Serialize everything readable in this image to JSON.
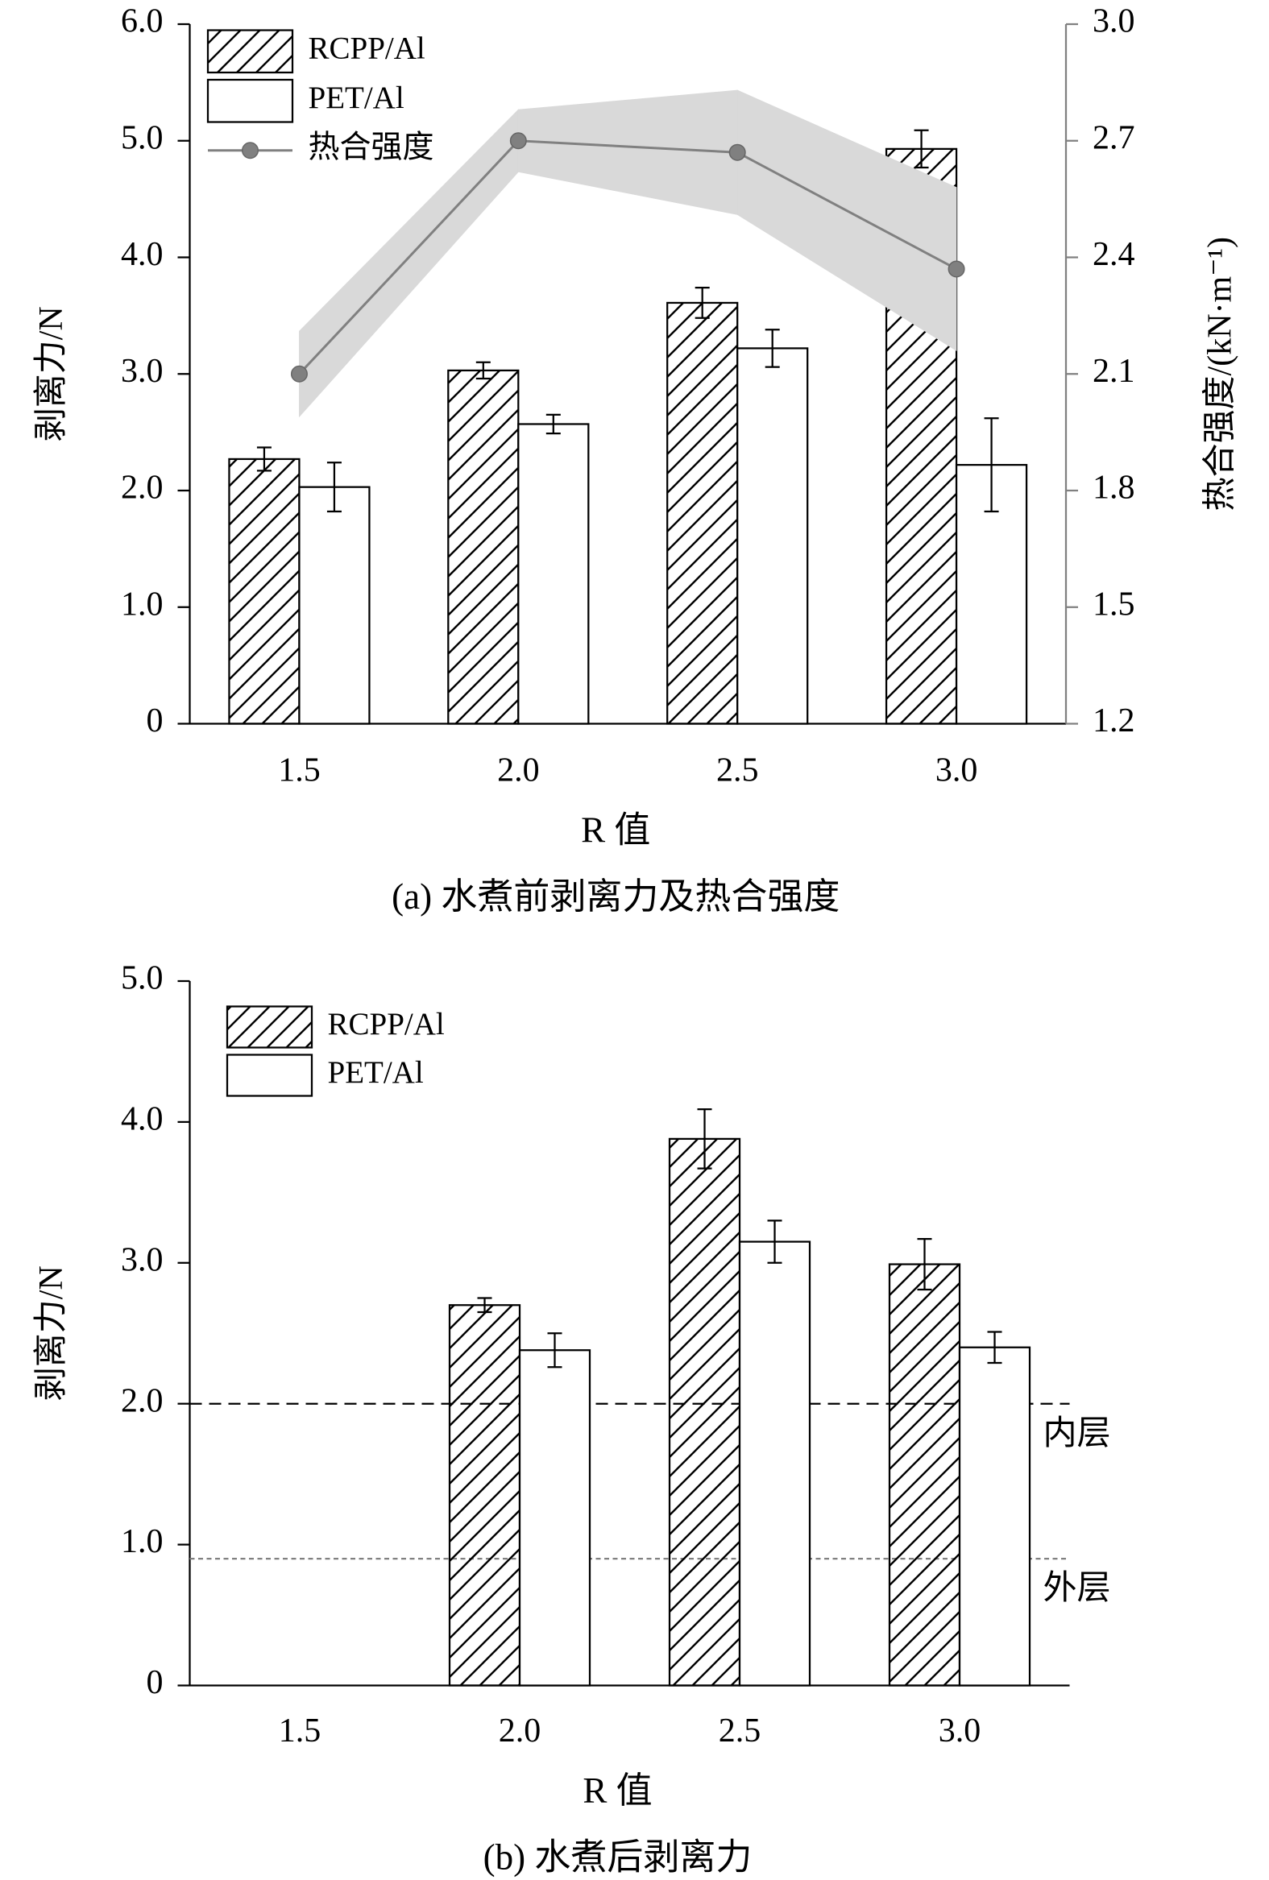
{
  "chart_data": [
    {
      "type": "bar",
      "categories": [
        "1.5",
        "2.0",
        "2.5",
        "3.0"
      ],
      "x_label": "R 值",
      "y_label": "剥离力/N",
      "y2_label": "热合强度/(kN·m⁻¹)",
      "caption": "(a) 水煮前剥离力及热合强度",
      "ylim": [
        0,
        6
      ],
      "yticks": [
        0,
        {
          "value": 1,
          "label": "1.0"
        },
        {
          "value": 2,
          "label": "2.0"
        },
        {
          "value": 3,
          "label": "3.0"
        },
        {
          "value": 4,
          "label": "4.0"
        },
        {
          "value": 5,
          "label": "5.0"
        },
        {
          "value": 6,
          "label": "6.0"
        }
      ],
      "y2lim": [
        1.2,
        3.0
      ],
      "y2ticks": [
        1.2,
        1.5,
        1.8,
        2.1,
        2.4,
        2.7,
        {
          "value": 3,
          "label": "3.0"
        }
      ],
      "legend": "upper left",
      "series": [
        {
          "name": "RCPP/Al",
          "type": "bar",
          "color": "#000000",
          "pattern": "hatch",
          "values": [
            2.27,
            3.03,
            3.61,
            4.93
          ],
          "errors": [
            0.1,
            0.07,
            0.13,
            0.16
          ]
        },
        {
          "name": "PET/Al",
          "type": "bar",
          "color": "#ffffff",
          "values": [
            2.03,
            2.57,
            3.22,
            2.22
          ],
          "errors": [
            0.21,
            0.08,
            0.16,
            0.4
          ]
        },
        {
          "name": "热合强度",
          "type": "line",
          "axis": "y2",
          "color": "#808080",
          "band_color": "#d9d9d9",
          "values": [
            2.1,
            2.7,
            2.67,
            2.37
          ],
          "errors": [
            0.11,
            0.08,
            0.16,
            0.21
          ]
        }
      ]
    },
    {
      "type": "bar",
      "categories": [
        "1.5",
        "2.0",
        "2.5",
        "3.0"
      ],
      "x_label": "R 值",
      "y_label": "剥离力/N",
      "caption": "(b) 水煮后剥离力",
      "ylim": [
        0,
        5
      ],
      "yticks": [
        0,
        {
          "value": 1,
          "label": "1.0"
        },
        {
          "value": 2,
          "label": "2.0"
        },
        {
          "value": 3,
          "label": "3.0"
        },
        {
          "value": 4,
          "label": "4.0"
        },
        {
          "value": 5,
          "label": "5.0"
        }
      ],
      "legend": "upper left",
      "series": [
        {
          "name": "RCPP/Al",
          "type": "bar",
          "color": "#000000",
          "pattern": "hatch",
          "values": [
            null,
            2.7,
            3.88,
            2.99
          ],
          "errors": [
            null,
            0.05,
            0.21,
            0.18
          ]
        },
        {
          "name": "PET/Al",
          "type": "bar",
          "color": "#ffffff",
          "values": [
            null,
            2.38,
            3.15,
            2.4
          ],
          "errors": [
            null,
            0.12,
            0.15,
            0.11
          ]
        }
      ],
      "hlines": [
        {
          "value": 2,
          "label": "内层",
          "color": "#000000",
          "dash": "dashed"
        },
        {
          "value": 0.9,
          "label": "外层",
          "color": "#808080",
          "dash": "dotted"
        }
      ]
    }
  ]
}
